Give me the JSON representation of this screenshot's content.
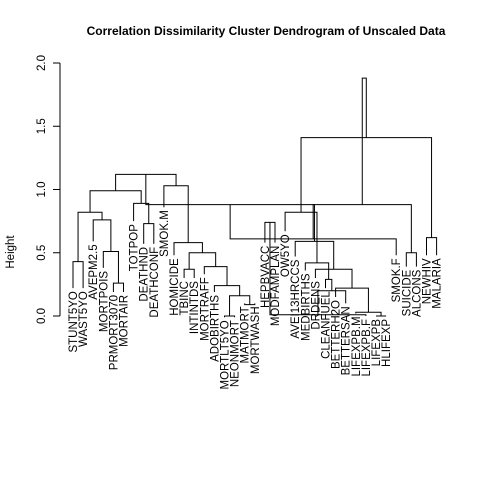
{
  "chart_data": {
    "type": "dendrogram",
    "title": "Correlation Dissimilarity Cluster Dendrogram of Unscaled Data",
    "ylabel": "Height",
    "xlabel": "",
    "ylim": [
      0,
      2.0
    ],
    "yticks": [
      0.0,
      0.5,
      1.0,
      1.5,
      2.0
    ],
    "ytick_labels": [
      "0.0",
      "0.5",
      "1.0",
      "1.5",
      "2.0"
    ],
    "leaves": [
      {
        "label": "STUNT5YO",
        "h": 0.22
      },
      {
        "label": "WAST5YO",
        "h": 0.22
      },
      {
        "label": "AVEPM2.5",
        "h": 0.59
      },
      {
        "label": "MORTPOIS",
        "h": 0.38
      },
      {
        "label": "PRMORT3070",
        "h": 0.19
      },
      {
        "label": "MORTAIR",
        "h": 0.19
      },
      {
        "label": "TOTPOP",
        "h": 0.75
      },
      {
        "label": "DEATHND",
        "h": 0.57
      },
      {
        "label": "DEATHCONF",
        "h": 0.57
      },
      {
        "label": "SMOK.M",
        "h": 0.86
      },
      {
        "label": "HOMICIDE",
        "h": 0.48
      },
      {
        "label": "TBINC",
        "h": 0.3
      },
      {
        "label": "INTINTDS",
        "h": 0.3
      },
      {
        "label": "MORTRAFF",
        "h": 0.33
      },
      {
        "label": "ADOBIRTHS",
        "h": 0.19
      },
      {
        "label": "MORTLT5YO",
        "h": -0.01
      },
      {
        "label": "NEONMORT",
        "h": -0.01
      },
      {
        "label": "MATMORT",
        "h": 0.1
      },
      {
        "label": "MORTWASH",
        "h": 0.1
      },
      {
        "label": "HEPBVACC",
        "h": 0.58
      },
      {
        "label": "MODFAMPLAN",
        "h": 0.58
      },
      {
        "label": "OW5YO",
        "h": 0.67
      },
      {
        "label": "AVEI13HRCCS",
        "h": 0.47
      },
      {
        "label": "MEDBIRTHS",
        "h": 0.36
      },
      {
        "label": "DRDENS",
        "h": 0.3
      },
      {
        "label": "CLEANFUEL",
        "h": 0.22
      },
      {
        "label": "BETTERH2O",
        "h": 0.15
      },
      {
        "label": "BETTERSAN",
        "h": 0.1
      },
      {
        "label": "LIFEXPB.M",
        "h": 0.02
      },
      {
        "label": "LIFEXPB.F",
        "h": 0.0
      },
      {
        "label": "LIFEXPB",
        "h": 0.0
      },
      {
        "label": "HLIFEXP",
        "h": 0.0
      },
      {
        "label": "SMOK.F",
        "h": 0.48
      },
      {
        "label": "SUICIDE",
        "h": 0.39
      },
      {
        "label": "ALCONS",
        "h": 0.39
      },
      {
        "label": "NEWHIV",
        "h": 0.48
      },
      {
        "label": "MALARIA",
        "h": 0.48
      }
    ],
    "merges": [
      {
        "l": 0,
        "r": 1,
        "h": 0.43
      },
      {
        "l": 4,
        "r": 5,
        "h": 0.26
      },
      {
        "l": 3,
        "r": 38,
        "h": 0.51
      },
      {
        "l": 2,
        "r": 39,
        "h": 0.76
      },
      {
        "l": 37,
        "r": 40,
        "h": 0.82
      },
      {
        "l": 7,
        "r": 8,
        "h": 0.73
      },
      {
        "l": 6,
        "r": 42,
        "h": 0.89
      },
      {
        "l": 41,
        "r": 43,
        "h": 0.99
      },
      {
        "l": 15,
        "r": 16,
        "h": 0.0
      },
      {
        "l": 17,
        "r": 18,
        "h": 0.09
      },
      {
        "l": 45,
        "r": 46,
        "h": 0.16
      },
      {
        "l": 14,
        "r": 47,
        "h": 0.24
      },
      {
        "l": 13,
        "r": 48,
        "h": 0.39
      },
      {
        "l": 11,
        "r": 12,
        "h": 0.37
      },
      {
        "l": 50,
        "r": 49,
        "h": 0.5
      },
      {
        "l": 10,
        "r": 51,
        "h": 0.58
      },
      {
        "l": 9,
        "r": 52,
        "h": 1.03
      },
      {
        "l": 44,
        "r": 53,
        "h": 1.12
      },
      {
        "l": 19,
        "r": 20,
        "h": 0.74
      },
      {
        "l": 30,
        "r": 31,
        "h": 0.0
      },
      {
        "l": 29,
        "r": 55,
        "h": 0.01
      },
      {
        "l": 28,
        "r": 56,
        "h": 0.03
      },
      {
        "l": 27,
        "r": 57,
        "h": 0.2
      },
      {
        "l": 26,
        "r": 58,
        "h": 0.22
      },
      {
        "l": 25,
        "r": 59,
        "h": 0.29
      },
      {
        "l": 24,
        "r": 60,
        "h": 0.37
      },
      {
        "l": 23,
        "r": 61,
        "h": 0.42
      },
      {
        "l": 22,
        "r": 62,
        "h": 0.59
      },
      {
        "l": 21,
        "r": 63,
        "h": 0.82
      },
      {
        "l": 54,
        "r": 64,
        "h": 0.88
      },
      {
        "l": 33,
        "r": 34,
        "h": 0.5
      },
      {
        "l": 32,
        "r": 66,
        "h": 0.61
      },
      {
        "l": 35,
        "r": 36,
        "h": 0.62
      },
      {
        "l": 67,
        "r": 68,
        "h": 0.88
      },
      {
        "l": 65,
        "r": 69,
        "h": 1.41
      },
      {
        "l": 70,
        "r": 71,
        "h": 1.88
      }
    ]
  }
}
